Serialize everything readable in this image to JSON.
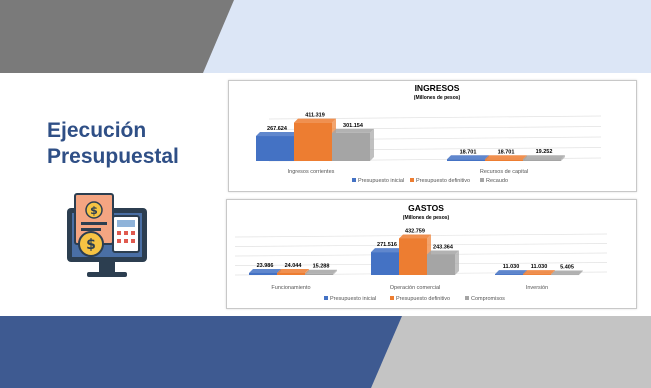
{
  "title": {
    "line1": "Ejecución",
    "line2": "Presupuestal"
  },
  "colors": {
    "top_band_dark": "#7a7a7a",
    "top_band_light": "#dce6f6",
    "bottom_band_dark": "#3e5a91",
    "bottom_band_light": "#c4c4c4",
    "title_text": "#2f4f86",
    "series_initial": "#4472c4",
    "series_definitive": "#ed7d31",
    "series_third": "#a5a5a5"
  },
  "icon": {
    "name": "budget-computer-icon"
  },
  "chart_data": [
    {
      "type": "bar",
      "title": "INGRESOS",
      "subtitle": "(Millones de pesos)",
      "categories": [
        "Ingresos corrientes",
        "Recursos de capital"
      ],
      "series": [
        {
          "name": "Presupuesto inicial",
          "values": [
            267.624,
            18.701
          ],
          "labels": [
            "267.624",
            "18.701"
          ],
          "color": "#4472c4"
        },
        {
          "name": "Presupuesto definitivo",
          "values": [
            411.319,
            18.701
          ],
          "labels": [
            "411.319",
            "18.701"
          ],
          "color": "#ed7d31"
        },
        {
          "name": "Recaudo",
          "values": [
            301.154,
            19.252
          ],
          "labels": [
            "301.154",
            "19.252"
          ],
          "color": "#a5a5a5"
        }
      ],
      "ylim": [
        0,
        450
      ],
      "grid": true,
      "legend": "bottom"
    },
    {
      "type": "bar",
      "title": "GASTOS",
      "subtitle": "(Millones de pesos)",
      "categories": [
        "Funcionamiento",
        "Operación comercial",
        "Inversión"
      ],
      "series": [
        {
          "name": "Presupuesto inicial",
          "values": [
            23.986,
            271.516,
            11.03
          ],
          "labels": [
            "23.986",
            "271.516",
            "11.030"
          ],
          "color": "#4472c4"
        },
        {
          "name": "Presupuesto definitivo",
          "values": [
            24.044,
            432.759,
            11.03
          ],
          "labels": [
            "24.044",
            "432.759",
            "11.030"
          ],
          "color": "#ed7d31"
        },
        {
          "name": "Compromisos",
          "values": [
            15.288,
            243.364,
            5.405
          ],
          "labels": [
            "15.288",
            "243.364",
            "5.405"
          ],
          "color": "#a5a5a5"
        }
      ],
      "ylim": [
        0,
        450
      ],
      "grid": true,
      "legend": "bottom"
    }
  ]
}
